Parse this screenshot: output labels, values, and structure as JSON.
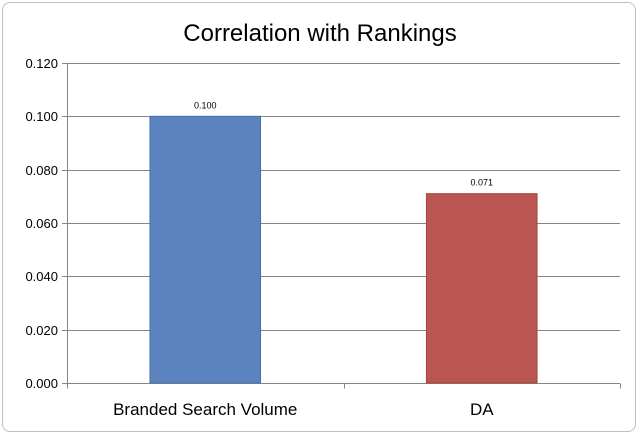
{
  "chart_data": {
    "type": "bar",
    "title": "Correlation with Rankings",
    "xlabel": "",
    "ylabel": "",
    "categories": [
      "Branded Search Volume",
      "DA"
    ],
    "values": [
      0.1,
      0.071
    ],
    "data_labels": [
      "0.100",
      "0.071"
    ],
    "bar_colors": [
      "#5b83be",
      "#b95651"
    ],
    "bar_border_colors": [
      "#4a6fa5",
      "#a0463f"
    ],
    "ylim": [
      0,
      0.12
    ],
    "yticks": [
      0,
      0.02,
      0.04,
      0.06,
      0.08,
      0.1,
      0.12
    ],
    "ytick_labels": [
      "0.000",
      "0.020",
      "0.040",
      "0.060",
      "0.080",
      "0.100",
      "0.120"
    ],
    "grid": true,
    "legend": "none"
  }
}
